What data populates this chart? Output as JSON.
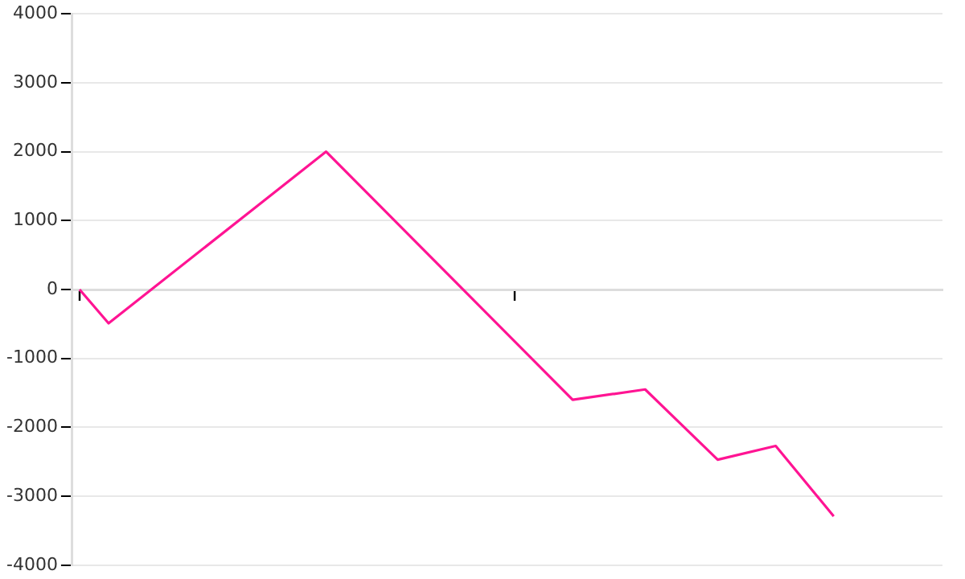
{
  "chart_data": {
    "type": "line",
    "categories": [
      null,
      null,
      null,
      null,
      null,
      null,
      null,
      null,
      null,
      null,
      null,
      null,
      null,
      null,
      null,
      null,
      null,
      null,
      null,
      null,
      null,
      null,
      null,
      null,
      null,
      null,
      null,
      null,
      null,
      null,
      null,
      null,
      null,
      null,
      null,
      null,
      null,
      null,
      null,
      null,
      null,
      null,
      null,
      null,
      null,
      null,
      null,
      null,
      null,
      null,
      null,
      null,
      null,
      null,
      null,
      null,
      null,
      null,
      null,
      null
    ],
    "series": [
      {
        "color": "#ff1493",
        "values": [
          0,
          null,
          -490,
          null,
          null,
          null,
          null,
          null,
          null,
          null,
          null,
          null,
          null,
          null,
          null,
          null,
          null,
          2000,
          null,
          null,
          null,
          null,
          null,
          null,
          null,
          null,
          null,
          null,
          null,
          null,
          null,
          null,
          null,
          null,
          -1600,
          null,
          null,
          null,
          null,
          -1450,
          null,
          null,
          null,
          null,
          -2470,
          null,
          null,
          null,
          -2270,
          null,
          null,
          null,
          -3290,
          null,
          null,
          null,
          null,
          null,
          null,
          null
        ]
      }
    ],
    "ylim": [
      -4000,
      4000
    ],
    "yticks": [
      -4000,
      -3000,
      -2000,
      -1000,
      0,
      1000,
      2000,
      3000,
      4000
    ],
    "grid": "y",
    "tick_labels": "y",
    "marker": "none",
    "line_style": "solid",
    "legend": false
  }
}
